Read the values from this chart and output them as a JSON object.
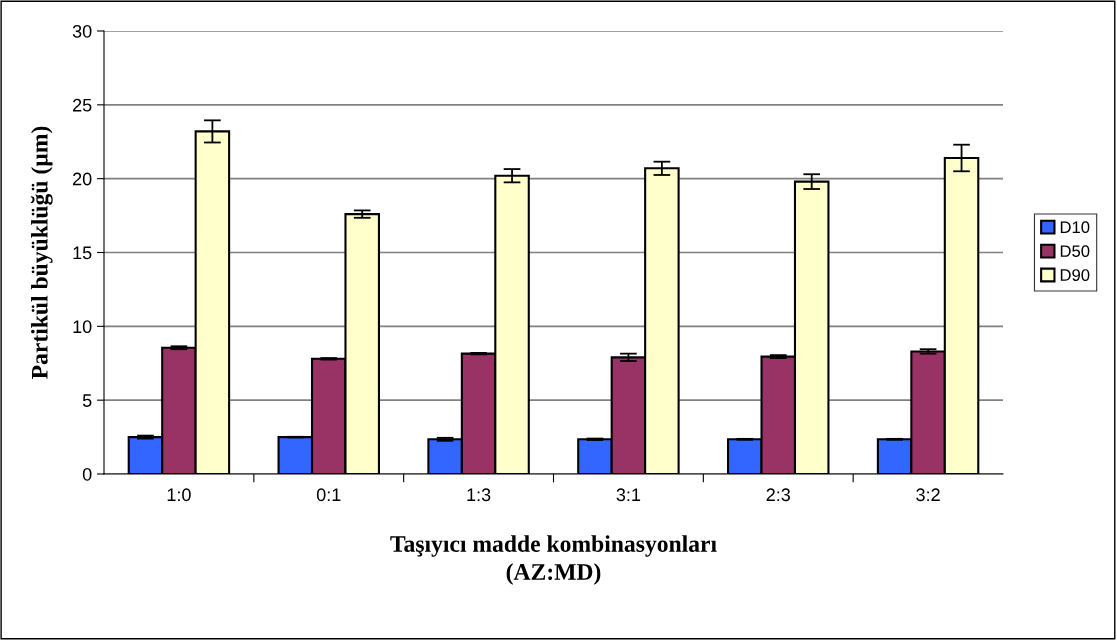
{
  "chart_data": {
    "type": "bar",
    "xlabel": "Taşıyıcı madde kombinasyonları\n(AZ:MD)",
    "ylabel": "Partikül büyüklüğü (µm)",
    "categories": [
      "1:0",
      "0:1",
      "1:3",
      "3:1",
      "2:3",
      "3:2"
    ],
    "series": [
      {
        "name": "D10",
        "color": "#3366ff",
        "values": [
          2.5,
          2.5,
          2.35,
          2.35,
          2.35,
          2.35
        ],
        "errors": [
          0.1,
          0.02,
          0.1,
          0.05,
          0.03,
          0.03
        ]
      },
      {
        "name": "D50",
        "color": "#993366",
        "values": [
          8.55,
          7.8,
          8.15,
          7.9,
          7.95,
          8.3
        ],
        "errors": [
          0.1,
          0.05,
          0.05,
          0.25,
          0.1,
          0.15
        ]
      },
      {
        "name": "D90",
        "color": "#ffffcc",
        "values": [
          23.2,
          17.6,
          20.2,
          20.7,
          19.8,
          21.4
        ],
        "errors": [
          0.75,
          0.25,
          0.45,
          0.45,
          0.5,
          0.9
        ]
      }
    ],
    "ylim": [
      0,
      30
    ],
    "yticks": [
      0,
      5,
      10,
      15,
      20,
      25,
      30
    ],
    "grid": "y",
    "legend": "right"
  }
}
